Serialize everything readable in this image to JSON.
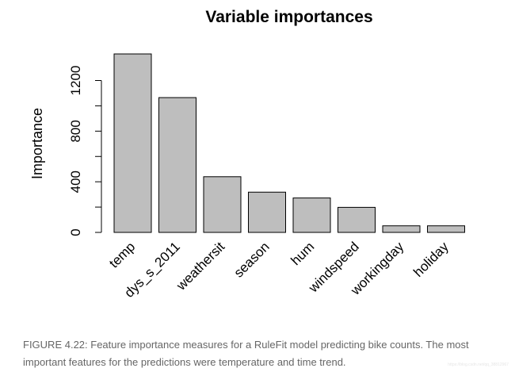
{
  "chart_data": {
    "type": "bar",
    "title": "Variable importances",
    "xlabel": "",
    "ylabel": "Importance",
    "categories": [
      "temp",
      "dys_s_2011",
      "weathersit",
      "season",
      "hum",
      "windspeed",
      "workingday",
      "holiday"
    ],
    "values": [
      1410,
      1065,
      440,
      318,
      272,
      198,
      52,
      52
    ],
    "yticks": [
      0,
      400,
      800,
      1200
    ],
    "yticks_minor": [
      200,
      600,
      1000
    ],
    "ylim": [
      0,
      1410
    ],
    "bar_color": "#bebebe",
    "grid": false,
    "legend": "none"
  },
  "caption": {
    "line1": "FIGURE 4.22: Feature importance measures for a RuleFit model predicting bike counts. The most",
    "line2": "important features for the predictions were temperature and time trend."
  },
  "watermark": "https://blog.csdn.net/qq_38812967"
}
